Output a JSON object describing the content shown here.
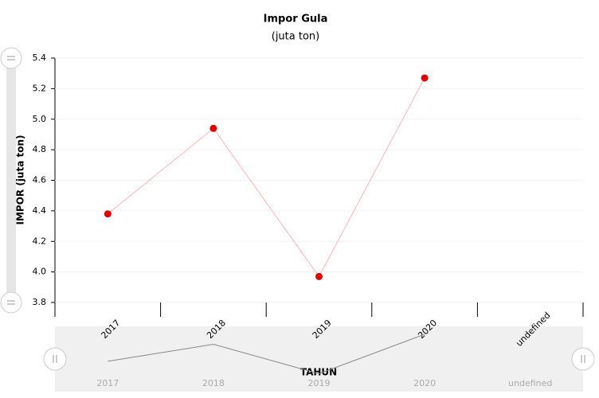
{
  "chart_data": {
    "type": "line",
    "title": "Impor Gula",
    "subtitle": "(juta ton)",
    "x_label": "TAHUN",
    "y_label": "IMPOR (juta ton)",
    "categories": [
      "2017",
      "2018",
      "2019",
      "2020",
      "undefined"
    ],
    "series": [
      {
        "name": "IMPOR (juta ton)",
        "color": "#e00000",
        "line_color": "#f7b8b8",
        "values": [
          4.38,
          4.94,
          3.97,
          5.27,
          null
        ]
      }
    ],
    "ylim": [
      3.8,
      5.4
    ],
    "yticks": [
      {
        "value": 3.8,
        "label": "3.8"
      },
      {
        "value": 4,
        "label": "4.0"
      },
      4.2,
      4.4,
      4.6,
      4.8,
      {
        "value": 5,
        "label": "5.0"
      },
      5.2,
      5.4
    ],
    "grid": true
  }
}
